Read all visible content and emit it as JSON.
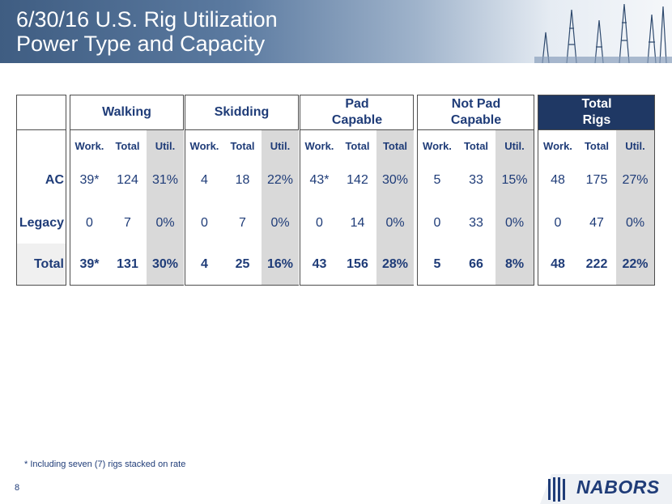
{
  "title_line1": "6/30/16 U.S. Rig Utilization",
  "title_line2": "Power Type and Capacity",
  "groups": [
    {
      "label": "Walking",
      "sub": [
        "Work.",
        "Total",
        "Util."
      ],
      "ac": [
        "39*",
        "124",
        "31%"
      ],
      "legacy": [
        "0",
        "7",
        "0%"
      ],
      "total": [
        "39*",
        "131",
        "30%"
      ]
    },
    {
      "label": "Skidding",
      "sub": [
        "Work.",
        "Total",
        "Util."
      ],
      "ac": [
        "4",
        "18",
        "22%"
      ],
      "legacy": [
        "0",
        "7",
        "0%"
      ],
      "total": [
        "4",
        "25",
        "16%"
      ]
    },
    {
      "label": "Pad Capable",
      "sub": [
        "Work.",
        "Total",
        "Total"
      ],
      "ac": [
        "43*",
        "142",
        "30%"
      ],
      "legacy": [
        "0",
        "14",
        "0%"
      ],
      "total": [
        "43",
        "156",
        "28%"
      ]
    },
    {
      "label": "Not Pad Capable",
      "sub": [
        "Work.",
        "Total",
        "Util."
      ],
      "ac": [
        "5",
        "33",
        "15%"
      ],
      "legacy": [
        "0",
        "33",
        "0%"
      ],
      "total": [
        "5",
        "66",
        "8%"
      ]
    },
    {
      "label": "Total Rigs",
      "sub": [
        "Work.",
        "Total",
        "Util."
      ],
      "ac": [
        "48",
        "175",
        "27%"
      ],
      "legacy": [
        "0",
        "47",
        "0%"
      ],
      "total": [
        "48",
        "222",
        "22%"
      ]
    }
  ],
  "row_labels": {
    "ac": "AC",
    "legacy": "Legacy",
    "total": "Total"
  },
  "footnote": "* Including seven (7) rigs stacked on rate",
  "page_number": "8",
  "brand": "NABORS",
  "colors": {
    "text": "#1f3c78",
    "shade": "#d9d9d9",
    "total_header": "#1f3864"
  }
}
